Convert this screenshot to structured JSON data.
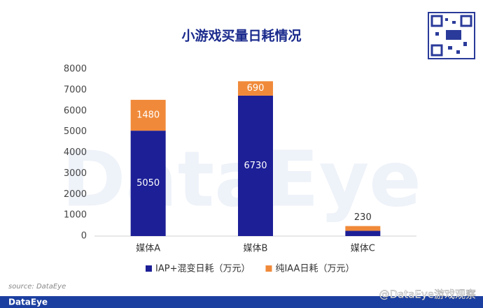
{
  "chart_data": {
    "type": "stacked-bar",
    "title": "小游戏买量日耗情况",
    "categories": [
      "媒体A",
      "媒体B",
      "媒体C"
    ],
    "series": [
      {
        "name": "IAP+混变日耗（万元）",
        "color": "#1c1f96",
        "values": [
          5050,
          6730,
          250
        ]
      },
      {
        "name": "纯IAA日耗（万元）",
        "color": "#f08a3a",
        "values": [
          1480,
          690,
          230
        ]
      }
    ],
    "ylim": [
      0,
      8000
    ],
    "yticks": [
      0,
      1000,
      2000,
      3000,
      4000,
      5000,
      6000,
      7000,
      8000
    ],
    "grid": false,
    "legend": "bottom",
    "watermark": "DataEye",
    "source": "source: DataEye",
    "brand": "DataEye",
    "credit": "@DataEye游戏观察"
  }
}
